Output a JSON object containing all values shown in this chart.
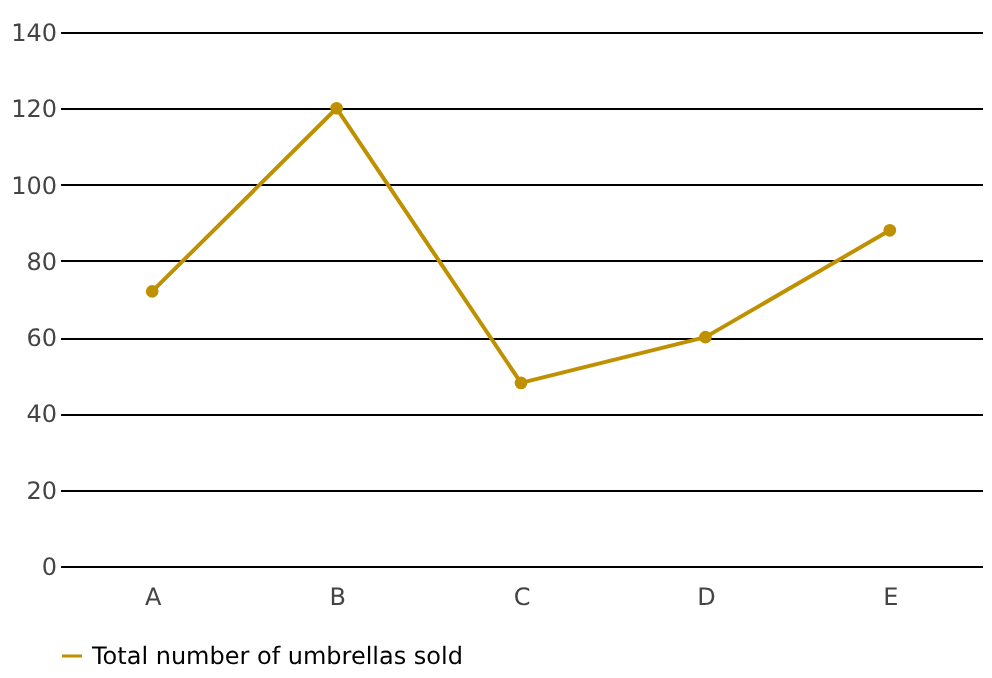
{
  "chart_data": {
    "type": "line",
    "categories": [
      "A",
      "B",
      "C",
      "D",
      "E"
    ],
    "series": [
      {
        "name": "Total number of umbrellas sold",
        "color": "#bf9000",
        "values": [
          72,
          120,
          48,
          60,
          88
        ]
      }
    ],
    "ylim": [
      0,
      140
    ],
    "yticks": [
      0,
      20,
      40,
      60,
      80,
      100,
      120,
      140
    ],
    "grid": "y",
    "legend": "bottom",
    "marker": "circle",
    "line_style": "solid"
  }
}
